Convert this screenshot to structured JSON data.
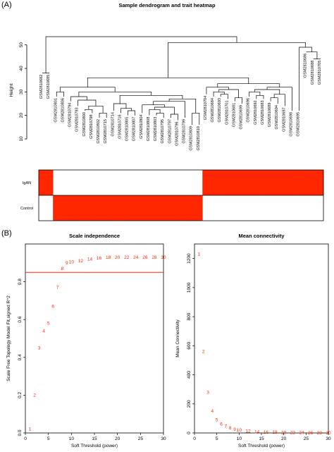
{
  "panel_labels": {
    "a": "(A)",
    "b": "(B)"
  },
  "colors": {
    "red": "#ff2600",
    "threshold_line": "#ff2600",
    "black": "#000000"
  },
  "chart_data": [
    {
      "type": "dendrogram",
      "title": "Sample dendrogram and trait heatmap",
      "ylabel": "Height",
      "ylim": [
        10,
        55
      ],
      "yticks": [
        10,
        20,
        30,
        40,
        50
      ],
      "leaves": [
        {
          "label": "GSM2810682",
          "trait": "IgAN"
        },
        {
          "label": "GSM2810685",
          "trait": "IgAN"
        },
        {
          "label": "GSM2810801",
          "trait": "Control"
        },
        {
          "label": "GSM2810806",
          "trait": "Control"
        },
        {
          "label": "GSM2810794",
          "trait": "Control"
        },
        {
          "label": "GSM2810793",
          "trait": "Control"
        },
        {
          "label": "GSM2810800",
          "trait": "Control"
        },
        {
          "label": "GSM2810798",
          "trait": "Control"
        },
        {
          "label": "GSM2810802",
          "trait": "Control"
        },
        {
          "label": "GSM2810715",
          "trait": "Control"
        },
        {
          "label": "GSM2810714",
          "trait": "Control"
        },
        {
          "label": "GSM2810716",
          "trait": "Control"
        },
        {
          "label": "GSM2810805",
          "trait": "Control"
        },
        {
          "label": "GSM2810807",
          "trait": "Control"
        },
        {
          "label": "GSM2810804",
          "trait": "Control"
        },
        {
          "label": "GSM2810808",
          "trait": "Control"
        },
        {
          "label": "GSM2810803",
          "trait": "Control"
        },
        {
          "label": "GSM2810795",
          "trait": "Control"
        },
        {
          "label": "GSM2810797",
          "trait": "Control"
        },
        {
          "label": "GSM2810796",
          "trait": "Control"
        },
        {
          "label": "GSM2810799",
          "trait": "Control"
        },
        {
          "label": "GSM2810809",
          "trait": "Control"
        },
        {
          "label": "GSM2810810",
          "trait": "Control"
        },
        {
          "label": "GSM2810704",
          "trait": "IgAN"
        },
        {
          "label": "GSM2810684",
          "trait": "IgAN"
        },
        {
          "label": "GSM2810693",
          "trait": "IgAN"
        },
        {
          "label": "GSM2810701",
          "trait": "IgAN"
        },
        {
          "label": "GSM2810681",
          "trait": "IgAN"
        },
        {
          "label": "GSM2810699",
          "trait": "IgAN"
        },
        {
          "label": "GSM2810696",
          "trait": "IgAN"
        },
        {
          "label": "GSM2810692",
          "trait": "IgAN"
        },
        {
          "label": "GSM2810683",
          "trait": "IgAN"
        },
        {
          "label": "GSM2810689",
          "trait": "IgAN"
        },
        {
          "label": "GSM2810694",
          "trait": "IgAN"
        },
        {
          "label": "GSM2810697",
          "trait": "IgAN"
        },
        {
          "label": "GSM2810698",
          "trait": "IgAN"
        },
        {
          "label": "GSM2810695",
          "trait": "IgAN"
        },
        {
          "label": "GSM2810686",
          "trait": "IgAN"
        },
        {
          "label": "GSM2810688",
          "trait": "IgAN"
        },
        {
          "label": "GSM2810705",
          "trait": "IgAN"
        }
      ],
      "heatmap_rows": [
        "IgAN",
        "Control"
      ]
    },
    {
      "type": "scatter",
      "title": "Scale independence",
      "xlabel": "Soft Threshold (power)",
      "ylabel": "Scale Free Topology Model Fit,signed R^2",
      "xlim": [
        0,
        30
      ],
      "ylim": [
        0,
        1.0
      ],
      "xticks": [
        0,
        5,
        10,
        15,
        20,
        25,
        30
      ],
      "yticks": [
        0.0,
        0.2,
        0.4,
        0.6,
        0.8
      ],
      "threshold": 0.85,
      "x": [
        1,
        2,
        3,
        4,
        5,
        6,
        7,
        8,
        9,
        10,
        12,
        14,
        16,
        18,
        20,
        22,
        24,
        26,
        28,
        30
      ],
      "y": [
        0.02,
        0.2,
        0.45,
        0.54,
        0.58,
        0.67,
        0.77,
        0.87,
        0.9,
        0.905,
        0.91,
        0.92,
        0.925,
        0.93,
        0.93,
        0.93,
        0.93,
        0.93,
        0.93,
        0.93
      ]
    },
    {
      "type": "scatter",
      "title": "Mean connectivity",
      "xlabel": "Soft Threshold (power)",
      "ylabel": "Mean Connectivity",
      "xlim": [
        0,
        30
      ],
      "ylim": [
        0,
        1300
      ],
      "xticks": [
        0,
        5,
        10,
        15,
        20,
        25,
        30
      ],
      "yticks": [
        0,
        200,
        400,
        600,
        800,
        1000,
        1200
      ],
      "x": [
        1,
        2,
        3,
        4,
        5,
        6,
        7,
        8,
        9,
        10,
        12,
        14,
        16,
        18,
        20,
        22,
        24,
        26,
        28,
        30
      ],
      "y": [
        1230,
        560,
        280,
        150,
        90,
        60,
        45,
        35,
        25,
        20,
        12,
        8,
        6,
        4,
        3,
        2,
        2,
        1,
        1,
        1
      ]
    }
  ]
}
